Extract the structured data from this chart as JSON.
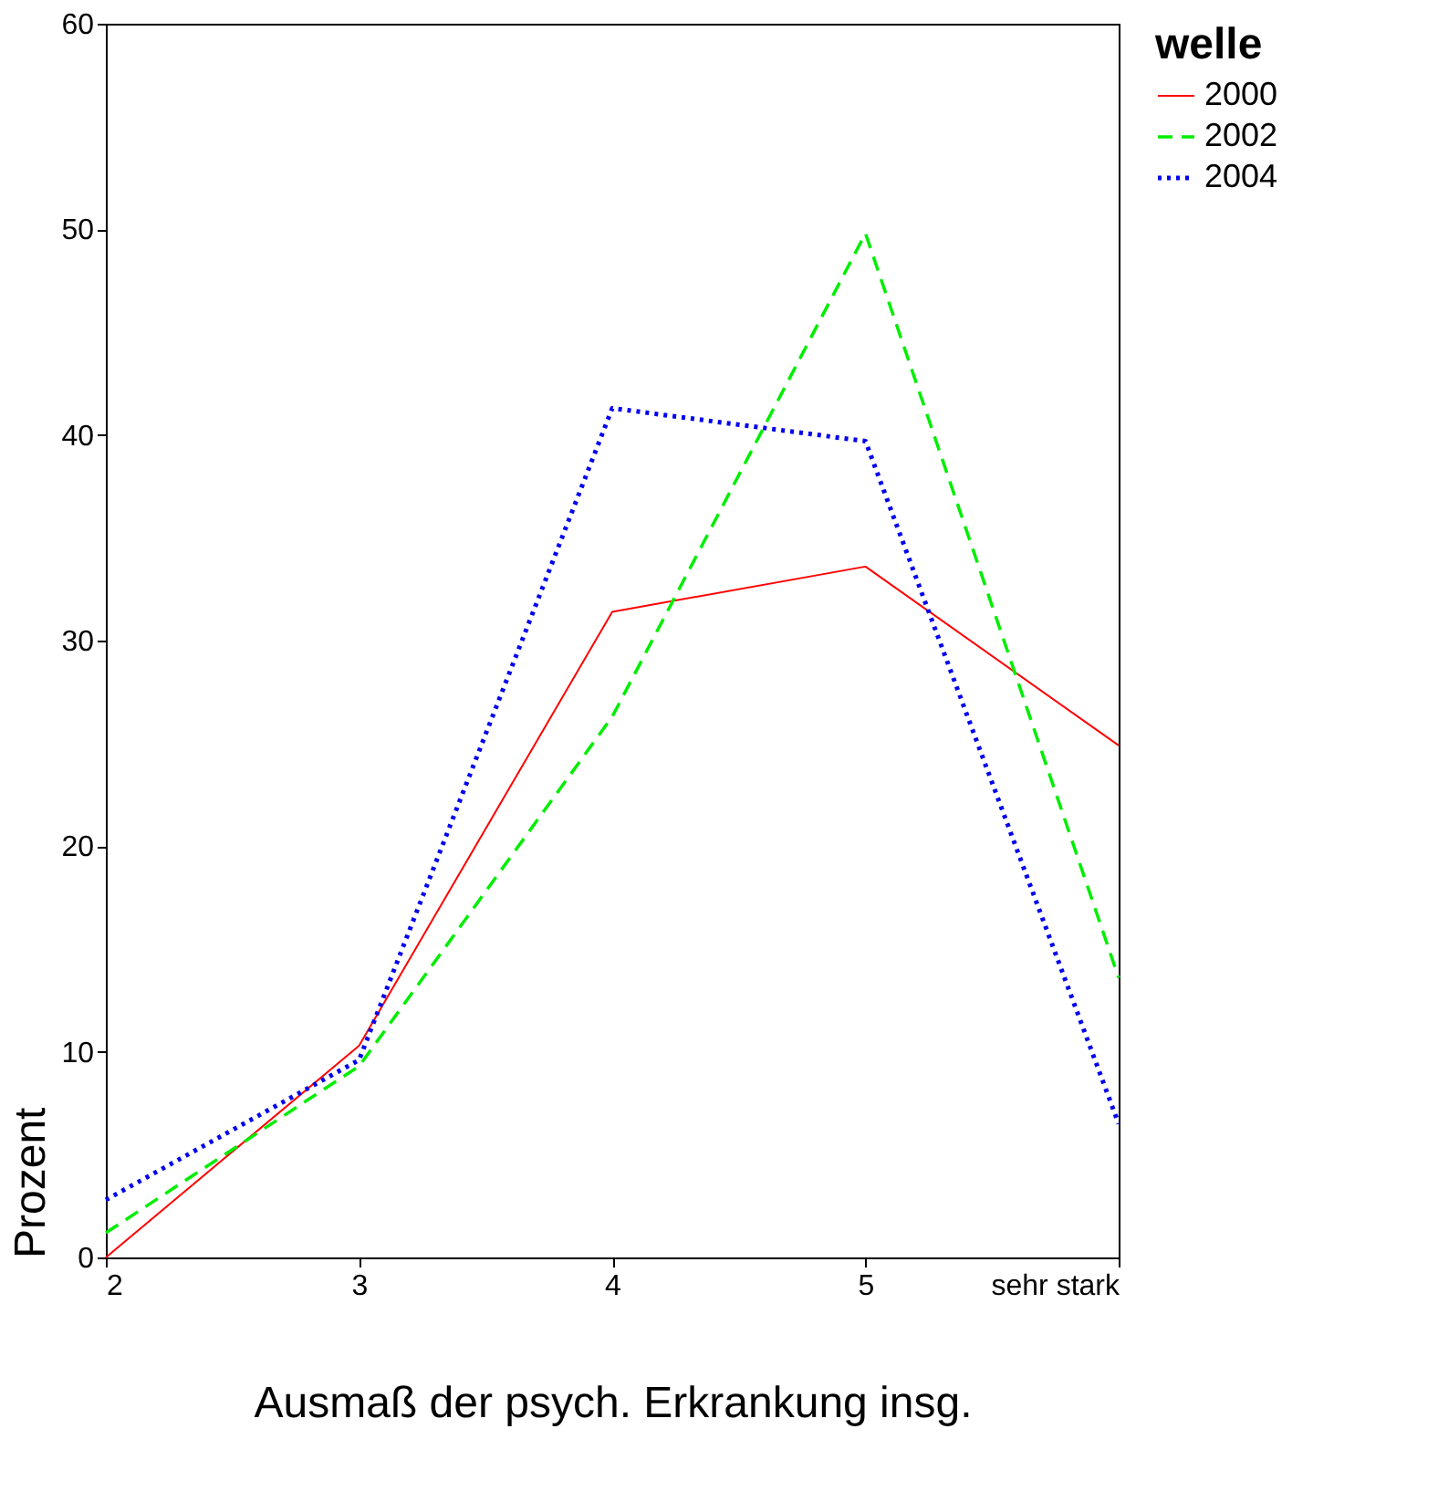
{
  "chart_data": {
    "type": "line",
    "xlabel": "Ausmaß der psych. Erkrankung insg.",
    "ylabel": "Prozent",
    "legend_title": "welle",
    "categories": [
      "2",
      "3",
      "4",
      "5",
      "sehr stark"
    ],
    "series": [
      {
        "name": "2000",
        "color": "#ff0000",
        "line_style": "solid",
        "values": [
          0,
          10.3,
          31.4,
          33.6,
          24.9
        ]
      },
      {
        "name": "2002",
        "color": "#00ee00",
        "line_style": "dashed",
        "values": [
          1.2,
          9.3,
          26.3,
          49.8,
          13.6
        ]
      },
      {
        "name": "2004",
        "color": "#0000ee",
        "line_style": "dotted",
        "values": [
          2.8,
          9.6,
          41.3,
          39.7,
          6.5
        ]
      }
    ],
    "ylim": [
      0,
      60
    ],
    "yticks": [
      0,
      10,
      20,
      30,
      40,
      50,
      60
    ],
    "grid": false,
    "legend": "right",
    "marker": "none"
  }
}
